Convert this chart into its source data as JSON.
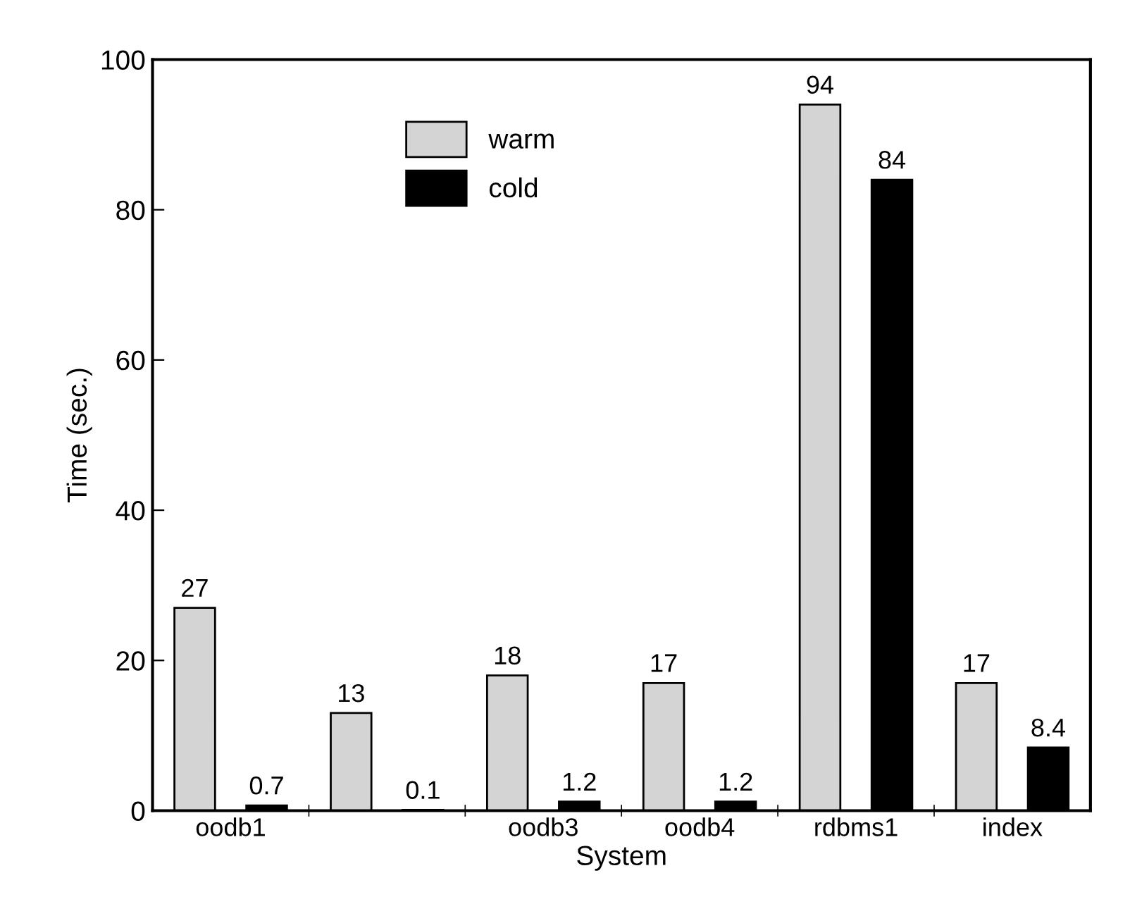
{
  "chart_data": {
    "type": "bar",
    "xlabel": "System",
    "ylabel": "Time (sec.)",
    "categories": [
      "oodb1",
      null,
      "oodb3",
      "oodb4",
      "rdbms1",
      "index"
    ],
    "series": [
      {
        "name": "warm",
        "color": "#d4d4d4",
        "values": [
          27,
          13,
          18,
          17,
          94,
          17
        ]
      },
      {
        "name": "cold",
        "color": "#000000",
        "values": [
          0.7,
          0.1,
          1.2,
          1.2,
          84,
          8.4
        ]
      }
    ],
    "ylim": [
      0,
      100
    ],
    "yticks": [
      0,
      20,
      40,
      60,
      80,
      100
    ],
    "data_labels": true,
    "legend": "top",
    "grid": false
  }
}
